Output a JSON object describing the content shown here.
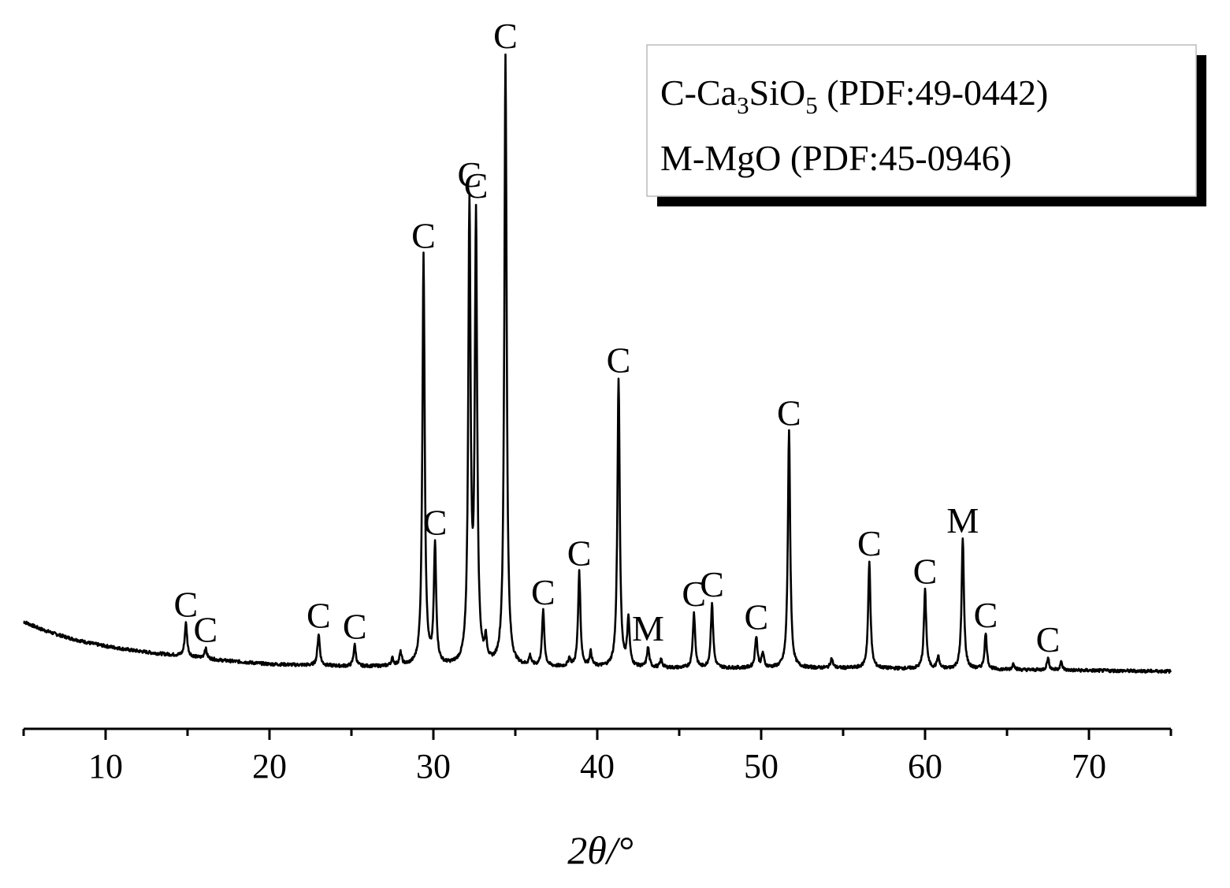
{
  "chart_data": {
    "type": "line",
    "xlabel": "2θ/°",
    "ylabel": "",
    "xlim": [
      5,
      75
    ],
    "x_ticks": [
      10,
      20,
      30,
      40,
      50,
      60,
      70
    ],
    "x_tick_labels": [
      "10",
      "20",
      "30",
      "40",
      "50",
      "60",
      "70"
    ],
    "y_axis_shown": false,
    "grid": false,
    "legend": {
      "position": "top-right",
      "entries": [
        {
          "marker": "C",
          "prefix": "C-Ca",
          "sub1": "3",
          "mid": "SiO",
          "sub2": "5",
          "suffix": " (PDF:49-0442)"
        },
        {
          "marker": "M",
          "prefix": "M-MgO (PDF:45-0946)",
          "sub1": "",
          "mid": "",
          "sub2": "",
          "suffix": ""
        }
      ]
    },
    "baseline_points": [
      [
        5.0,
        73
      ],
      [
        6.0,
        64
      ],
      [
        7.0,
        57
      ],
      [
        8.0,
        51
      ],
      [
        9.0,
        46
      ],
      [
        10.0,
        42
      ],
      [
        11.5,
        37
      ],
      [
        13.0,
        33
      ],
      [
        15.0,
        29
      ],
      [
        17.0,
        24
      ],
      [
        20.0,
        19
      ],
      [
        25.0,
        16
      ],
      [
        30.0,
        16
      ],
      [
        35.0,
        15
      ],
      [
        40.0,
        15
      ],
      [
        45.0,
        14
      ],
      [
        50.0,
        14
      ],
      [
        55.0,
        14
      ],
      [
        60.0,
        13
      ],
      [
        65.0,
        12
      ],
      [
        70.0,
        11
      ],
      [
        75.0,
        10
      ]
    ],
    "peaks": [
      {
        "x": 14.9,
        "height": 42,
        "label": "C"
      },
      {
        "x": 16.1,
        "height": 13,
        "label": "C"
      },
      {
        "x": 23.0,
        "height": 40,
        "label": "C"
      },
      {
        "x": 25.2,
        "height": 27,
        "label": "C"
      },
      {
        "x": 27.5,
        "height": 9,
        "label": ""
      },
      {
        "x": 28.0,
        "height": 16,
        "label": ""
      },
      {
        "x": 29.4,
        "height": 520,
        "label": "C"
      },
      {
        "x": 30.1,
        "height": 150,
        "label": "C"
      },
      {
        "x": 32.2,
        "height": 575,
        "label": "C"
      },
      {
        "x": 32.6,
        "height": 560,
        "label": "C"
      },
      {
        "x": 33.2,
        "height": 26,
        "label": ""
      },
      {
        "x": 34.4,
        "height": 775,
        "label": "C"
      },
      {
        "x": 35.9,
        "height": 12,
        "label": ""
      },
      {
        "x": 36.7,
        "height": 70,
        "label": "C"
      },
      {
        "x": 38.3,
        "height": 10,
        "label": ""
      },
      {
        "x": 38.9,
        "height": 120,
        "label": "C"
      },
      {
        "x": 39.6,
        "height": 18,
        "label": ""
      },
      {
        "x": 41.3,
        "height": 365,
        "label": "C"
      },
      {
        "x": 41.9,
        "height": 60,
        "label": ""
      },
      {
        "x": 43.1,
        "height": 25,
        "label": "M"
      },
      {
        "x": 43.9,
        "height": 10,
        "label": ""
      },
      {
        "x": 45.9,
        "height": 70,
        "label": "C"
      },
      {
        "x": 47.0,
        "height": 82,
        "label": "C"
      },
      {
        "x": 49.7,
        "height": 40,
        "label": "C"
      },
      {
        "x": 50.1,
        "height": 18,
        "label": ""
      },
      {
        "x": 51.7,
        "height": 300,
        "label": "C"
      },
      {
        "x": 54.3,
        "height": 12,
        "label": ""
      },
      {
        "x": 56.6,
        "height": 135,
        "label": "C"
      },
      {
        "x": 60.0,
        "height": 100,
        "label": "C"
      },
      {
        "x": 60.8,
        "height": 15,
        "label": ""
      },
      {
        "x": 62.3,
        "height": 165,
        "label": "M"
      },
      {
        "x": 63.7,
        "height": 45,
        "label": "C"
      },
      {
        "x": 65.4,
        "height": 8,
        "label": ""
      },
      {
        "x": 67.5,
        "height": 15,
        "label": "C"
      },
      {
        "x": 68.3,
        "height": 10,
        "label": ""
      }
    ]
  }
}
